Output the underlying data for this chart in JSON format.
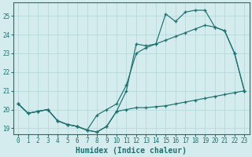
{
  "xlabel": "Humidex (Indice chaleur)",
  "bg_color": "#d4eced",
  "grid_color": "#b8d8da",
  "line_color": "#1f7070",
  "xlim": [
    -0.5,
    23.5
  ],
  "ylim": [
    18.7,
    25.7
  ],
  "yticks": [
    19,
    20,
    21,
    22,
    23,
    24,
    25
  ],
  "xticks": [
    0,
    1,
    2,
    3,
    4,
    5,
    6,
    7,
    8,
    9,
    10,
    11,
    12,
    13,
    14,
    15,
    16,
    17,
    18,
    19,
    20,
    21,
    22,
    23
  ],
  "line1_x": [
    0,
    1,
    2,
    3,
    4,
    5,
    6,
    7,
    8,
    9,
    10,
    11,
    12,
    13,
    14,
    15,
    16,
    17,
    18,
    19,
    20,
    21,
    22,
    23
  ],
  "line1_y": [
    20.3,
    19.8,
    19.9,
    20.0,
    19.4,
    19.2,
    19.1,
    18.9,
    18.8,
    19.1,
    19.9,
    21.0,
    23.5,
    23.4,
    23.5,
    25.1,
    24.7,
    25.2,
    25.3,
    25.3,
    24.4,
    24.2,
    23.0,
    21.0
  ],
  "line2_x": [
    0,
    1,
    2,
    3,
    4,
    5,
    6,
    7,
    8,
    9,
    10,
    11,
    12,
    13,
    14,
    15,
    16,
    17,
    18,
    19,
    20,
    21,
    22,
    23
  ],
  "line2_y": [
    20.3,
    19.8,
    19.9,
    20.0,
    19.4,
    19.2,
    19.1,
    18.9,
    19.7,
    20.0,
    20.3,
    21.3,
    23.0,
    23.3,
    23.5,
    23.7,
    23.9,
    24.1,
    24.3,
    24.5,
    24.4,
    24.2,
    23.0,
    21.0
  ],
  "line3_x": [
    0,
    1,
    2,
    3,
    4,
    5,
    6,
    7,
    8,
    9,
    10,
    11,
    12,
    13,
    14,
    15,
    16,
    17,
    18,
    19,
    20,
    21,
    22,
    23
  ],
  "line3_y": [
    20.3,
    19.8,
    19.9,
    20.0,
    19.4,
    19.2,
    19.1,
    18.9,
    18.8,
    19.1,
    19.9,
    20.0,
    20.1,
    20.1,
    20.15,
    20.2,
    20.3,
    20.4,
    20.5,
    20.6,
    20.7,
    20.8,
    20.9,
    21.0
  ]
}
